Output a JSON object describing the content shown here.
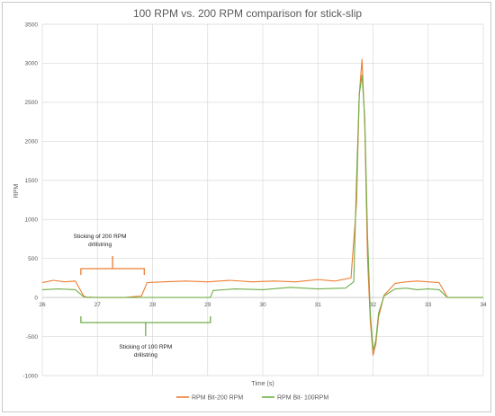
{
  "chart_data": {
    "type": "line",
    "title": "100 RPM vs. 200 RPM comparison for stick-slip",
    "xlabel": "Time (s)",
    "ylabel": "RPM",
    "xlim": [
      26,
      34
    ],
    "ylim": [
      -1000,
      3500
    ],
    "x_ticks": [
      26,
      27,
      28,
      29,
      30,
      31,
      32,
      33,
      34
    ],
    "y_ticks": [
      -1000,
      -500,
      0,
      500,
      1000,
      1500,
      2000,
      2500,
      3000,
      3500
    ],
    "grid": true,
    "legend_position": "bottom",
    "series": [
      {
        "name": "RPM Bit-200 RPM",
        "color": "#ED7D31",
        "x": [
          26.0,
          26.2,
          26.4,
          26.6,
          26.75,
          26.8,
          27.0,
          27.5,
          27.8,
          27.9,
          28.2,
          28.6,
          29.0,
          29.4,
          29.8,
          30.2,
          30.6,
          31.0,
          31.3,
          31.6,
          31.7,
          31.75,
          31.8,
          31.85,
          31.9,
          31.95,
          32.0,
          32.05,
          32.1,
          32.2,
          32.4,
          32.6,
          32.8,
          33.0,
          33.2,
          33.35,
          33.5,
          34.0
        ],
        "y": [
          190,
          220,
          200,
          210,
          20,
          5,
          0,
          0,
          20,
          190,
          200,
          210,
          200,
          220,
          200,
          210,
          200,
          230,
          210,
          250,
          1200,
          2600,
          3050,
          2200,
          500,
          -300,
          -740,
          -600,
          -250,
          30,
          180,
          200,
          210,
          200,
          190,
          0,
          0,
          0
        ]
      },
      {
        "name": "RPM Bit- 100RPM",
        "color": "#70AD47",
        "x": [
          26.0,
          26.3,
          26.6,
          26.75,
          26.8,
          27.5,
          28.5,
          29.05,
          29.1,
          29.5,
          30.0,
          30.5,
          31.0,
          31.5,
          31.65,
          31.7,
          31.75,
          31.8,
          31.85,
          31.9,
          31.95,
          32.0,
          32.05,
          32.1,
          32.2,
          32.4,
          32.6,
          32.8,
          33.0,
          33.2,
          33.35,
          33.5,
          34.0
        ],
        "y": [
          100,
          110,
          100,
          10,
          0,
          0,
          0,
          0,
          90,
          110,
          100,
          130,
          110,
          120,
          200,
          1500,
          2600,
          2850,
          2300,
          800,
          -200,
          -680,
          -550,
          -200,
          20,
          110,
          120,
          100,
          110,
          100,
          0,
          0,
          0
        ]
      }
    ],
    "annotations": [
      {
        "text": "Sticking of 200 RPM drillstring",
        "x_start": 26.7,
        "x_end": 27.85,
        "color": "#ED7D31",
        "placement": "above"
      },
      {
        "text": "Sticking of 100 RPM drillstring",
        "x_start": 26.7,
        "x_end": 29.05,
        "color": "#70AD47",
        "placement": "below"
      }
    ]
  }
}
